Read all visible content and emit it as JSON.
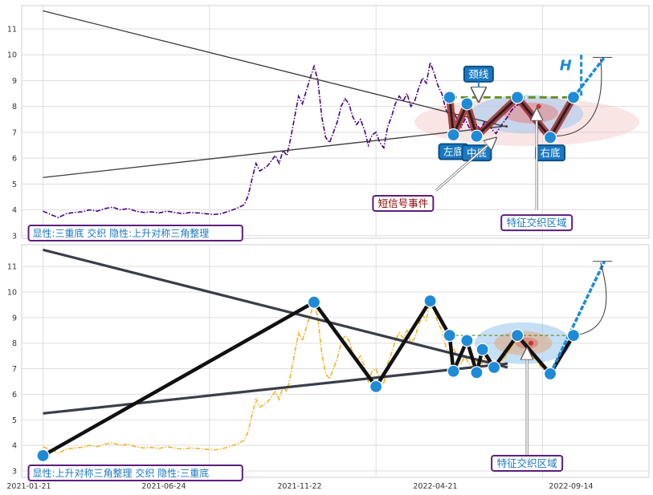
{
  "chart_data": [
    {
      "type": "line",
      "panel": "top",
      "ylim": [
        2.9,
        11.9
      ],
      "yticks": [
        3,
        4,
        5,
        6,
        7,
        8,
        9,
        10,
        11
      ],
      "grid": true,
      "series": [
        {
          "values": [
            [
              0,
              3.95
            ],
            [
              4,
              3.82
            ],
            [
              8,
              3.7
            ],
            [
              12,
              3.85
            ],
            [
              16,
              3.9
            ],
            [
              20,
              3.92
            ],
            [
              24,
              4.0
            ],
            [
              28,
              3.95
            ],
            [
              32,
              4.05
            ],
            [
              36,
              4.1
            ],
            [
              40,
              4.0
            ],
            [
              44,
              4.05
            ],
            [
              48,
              3.95
            ],
            [
              52,
              3.9
            ],
            [
              56,
              3.92
            ],
            [
              60,
              3.88
            ],
            [
              64,
              3.95
            ],
            [
              68,
              3.9
            ],
            [
              72,
              3.85
            ],
            [
              76,
              3.9
            ],
            [
              80,
              3.88
            ],
            [
              84,
              3.85
            ],
            [
              88,
              3.82
            ],
            [
              92,
              3.85
            ],
            [
              96,
              3.95
            ],
            [
              100,
              4.05
            ],
            [
              104,
              4.2
            ],
            [
              106,
              4.55
            ],
            [
              108,
              5.2
            ],
            [
              110,
              5.8
            ],
            [
              112,
              5.5
            ],
            [
              114,
              5.6
            ],
            [
              116,
              5.7
            ],
            [
              118,
              5.9
            ],
            [
              120,
              6.1
            ],
            [
              122,
              5.8
            ],
            [
              124,
              6.3
            ],
            [
              126,
              6.1
            ],
            [
              128,
              6.8
            ],
            [
              130,
              7.6
            ],
            [
              132,
              8.4
            ],
            [
              134,
              8.1
            ],
            [
              136,
              8.6
            ],
            [
              138,
              9.1
            ],
            [
              140,
              9.55
            ],
            [
              142,
              9.0
            ],
            [
              144,
              7.6
            ],
            [
              146,
              6.8
            ],
            [
              148,
              6.6
            ],
            [
              150,
              7.0
            ],
            [
              152,
              7.4
            ],
            [
              154,
              8.0
            ],
            [
              156,
              8.3
            ],
            [
              158,
              8.1
            ],
            [
              160,
              7.6
            ],
            [
              162,
              7.3
            ],
            [
              164,
              7.5
            ],
            [
              166,
              7.1
            ],
            [
              168,
              6.5
            ],
            [
              170,
              6.9
            ],
            [
              172,
              7.0
            ],
            [
              174,
              6.6
            ],
            [
              176,
              6.4
            ],
            [
              178,
              7.2
            ],
            [
              180,
              7.6
            ],
            [
              182,
              8.1
            ],
            [
              184,
              8.4
            ],
            [
              186,
              8.2
            ],
            [
              188,
              8.5
            ],
            [
              190,
              8.0
            ],
            [
              192,
              8.2
            ],
            [
              194,
              8.7
            ],
            [
              196,
              9.1
            ],
            [
              198,
              8.9
            ],
            [
              200,
              9.7
            ],
            [
              202,
              9.3
            ],
            [
              204,
              8.8
            ],
            [
              206,
              8.5
            ],
            [
              208,
              7.9
            ],
            [
              210,
              7.6
            ],
            [
              212,
              7.8
            ],
            [
              214,
              7.5
            ],
            [
              216,
              7.2
            ],
            [
              218,
              7.5
            ],
            [
              220,
              7.2
            ],
            [
              222,
              7.05
            ],
            [
              224,
              7.3
            ],
            [
              226,
              7.1
            ],
            [
              228,
              7.4
            ],
            [
              230,
              7.3
            ],
            [
              232,
              7.1
            ],
            [
              234,
              6.95
            ],
            [
              236,
              7.2
            ],
            [
              238,
              7.4
            ],
            [
              240,
              7.6
            ],
            [
              242,
              7.85
            ],
            [
              244,
              8.0
            ],
            [
              246,
              8.1
            ],
            [
              248,
              8.0
            ],
            [
              250,
              7.8
            ],
            [
              252,
              7.5
            ],
            [
              254,
              7.4
            ],
            [
              256,
              7.2
            ],
            [
              258,
              7.0
            ],
            [
              260,
              6.9
            ],
            [
              262,
              6.75
            ],
            [
              264,
              7.0
            ],
            [
              266,
              7.3
            ],
            [
              268,
              7.6
            ],
            [
              270,
              7.9
            ]
          ]
        }
      ],
      "trendlines": [
        {
          "from": [
            0,
            11.7
          ],
          "to": [
            240,
            7.2
          ]
        },
        {
          "from": [
            0,
            5.25
          ],
          "to": [
            240,
            7.25
          ]
        }
      ],
      "pattern": {
        "name": "三重底",
        "points": [
          [
            210,
            8.35
          ],
          [
            212,
            6.9
          ],
          [
            219,
            8.1
          ],
          [
            224,
            6.85
          ],
          [
            245,
            8.35
          ],
          [
            262,
            6.8
          ],
          [
            274,
            8.35
          ]
        ],
        "neckline": 8.35,
        "projection": [
          [
            274,
            8.35
          ],
          [
            290,
            9.9
          ]
        ],
        "labels": [
          "左底",
          "中底",
          "右底",
          "颈线",
          "H"
        ]
      },
      "annotations": {
        "short_signal": "短信号事件",
        "cross_zone": "特征交织区域",
        "legend": "显性:三重底 交织 隐性:上升对称三角整理"
      }
    },
    {
      "type": "line",
      "panel": "bottom",
      "ylim": [
        2.75,
        11.85
      ],
      "yticks": [
        3,
        4,
        5,
        6,
        7,
        8,
        9,
        10,
        11
      ],
      "grid": true,
      "xticks": [
        "2021-01-21",
        "2021-06-24",
        "2021-11-22",
        "2022-04-21",
        "2022-09-14"
      ],
      "series": [
        {
          "values": [
            [
              0,
              3.95
            ],
            [
              4,
              3.82
            ],
            [
              8,
              3.7
            ],
            [
              12,
              3.85
            ],
            [
              16,
              3.9
            ],
            [
              20,
              3.92
            ],
            [
              24,
              4.0
            ],
            [
              28,
              3.95
            ],
            [
              32,
              4.05
            ],
            [
              36,
              4.1
            ],
            [
              40,
              4.0
            ],
            [
              44,
              4.05
            ],
            [
              48,
              3.95
            ],
            [
              52,
              3.9
            ],
            [
              56,
              3.92
            ],
            [
              60,
              3.88
            ],
            [
              64,
              3.95
            ],
            [
              68,
              3.9
            ],
            [
              72,
              3.85
            ],
            [
              76,
              3.9
            ],
            [
              80,
              3.88
            ],
            [
              84,
              3.85
            ],
            [
              88,
              3.82
            ],
            [
              92,
              3.85
            ],
            [
              96,
              3.95
            ],
            [
              100,
              4.05
            ],
            [
              104,
              4.2
            ],
            [
              106,
              4.55
            ],
            [
              108,
              5.2
            ],
            [
              110,
              5.8
            ],
            [
              112,
              5.5
            ],
            [
              114,
              5.6
            ],
            [
              116,
              5.7
            ],
            [
              118,
              5.9
            ],
            [
              120,
              6.1
            ],
            [
              122,
              5.8
            ],
            [
              124,
              6.3
            ],
            [
              126,
              6.1
            ],
            [
              128,
              6.8
            ],
            [
              130,
              7.6
            ],
            [
              132,
              8.4
            ],
            [
              134,
              8.1
            ],
            [
              136,
              8.6
            ],
            [
              138,
              9.1
            ],
            [
              140,
              9.55
            ],
            [
              142,
              9.0
            ],
            [
              144,
              7.6
            ],
            [
              146,
              6.8
            ],
            [
              148,
              6.6
            ],
            [
              150,
              7.0
            ],
            [
              152,
              7.4
            ],
            [
              154,
              8.0
            ],
            [
              156,
              8.3
            ],
            [
              158,
              8.1
            ],
            [
              160,
              7.6
            ],
            [
              162,
              7.3
            ],
            [
              164,
              7.5
            ],
            [
              166,
              7.1
            ],
            [
              168,
              6.5
            ],
            [
              170,
              6.9
            ],
            [
              172,
              7.0
            ],
            [
              174,
              6.6
            ],
            [
              176,
              6.4
            ],
            [
              178,
              7.2
            ],
            [
              180,
              7.6
            ],
            [
              182,
              8.1
            ],
            [
              184,
              8.4
            ],
            [
              186,
              8.2
            ],
            [
              188,
              8.5
            ],
            [
              190,
              8.0
            ],
            [
              192,
              8.2
            ],
            [
              194,
              8.7
            ],
            [
              196,
              9.1
            ],
            [
              198,
              8.9
            ],
            [
              200,
              9.7
            ],
            [
              202,
              9.3
            ],
            [
              204,
              8.8
            ],
            [
              206,
              8.5
            ],
            [
              208,
              7.9
            ],
            [
              210,
              7.6
            ],
            [
              212,
              7.8
            ],
            [
              214,
              7.5
            ],
            [
              216,
              7.2
            ],
            [
              218,
              7.5
            ],
            [
              220,
              7.2
            ],
            [
              222,
              7.05
            ],
            [
              224,
              7.3
            ],
            [
              226,
              7.1
            ],
            [
              228,
              7.4
            ],
            [
              230,
              7.3
            ],
            [
              232,
              7.1
            ],
            [
              234,
              6.95
            ],
            [
              236,
              7.2
            ],
            [
              238,
              7.4
            ],
            [
              240,
              7.6
            ],
            [
              242,
              7.85
            ],
            [
              244,
              8.0
            ],
            [
              246,
              8.1
            ],
            [
              248,
              8.0
            ],
            [
              250,
              7.8
            ],
            [
              252,
              7.5
            ],
            [
              254,
              7.4
            ],
            [
              256,
              7.2
            ],
            [
              258,
              7.0
            ],
            [
              260,
              6.9
            ],
            [
              262,
              6.75
            ],
            [
              264,
              7.0
            ],
            [
              266,
              7.3
            ],
            [
              268,
              7.6
            ],
            [
              270,
              7.9
            ]
          ]
        }
      ],
      "trendlines": [
        {
          "from": [
            0,
            11.65
          ],
          "to": [
            240,
            7.05
          ]
        },
        {
          "from": [
            0,
            5.25
          ],
          "to": [
            240,
            7.2
          ]
        }
      ],
      "pattern": {
        "name": "上升对称三角整理",
        "points": [
          [
            0,
            3.6
          ],
          [
            140,
            9.6
          ],
          [
            172,
            6.3
          ],
          [
            200,
            9.65
          ],
          [
            210,
            8.3
          ],
          [
            212,
            6.9
          ],
          [
            219,
            8.1
          ],
          [
            224,
            6.85
          ],
          [
            227,
            7.75
          ],
          [
            233,
            7.05
          ],
          [
            245,
            8.3
          ],
          [
            262,
            6.8
          ],
          [
            274,
            8.3
          ]
        ],
        "projection": [
          [
            262,
            6.8
          ],
          [
            290,
            11.2
          ]
        ]
      },
      "annotations": {
        "cross_zone": "特征交织区域",
        "legend": "显性:上升对称三角整理 交织 隐性:三重底"
      }
    }
  ],
  "colors": {
    "top_series": "#4b0082",
    "bottom_series": "#f0b429",
    "pattern_red": "#a52a2a",
    "pattern_black": "#111111",
    "node_blue": "#1f8bd6",
    "neckline_green": "#6b8e23",
    "label_blue": "#1a78c2",
    "label_purple_border": "#5b1e7a",
    "label_text_red": "#8b0000"
  }
}
